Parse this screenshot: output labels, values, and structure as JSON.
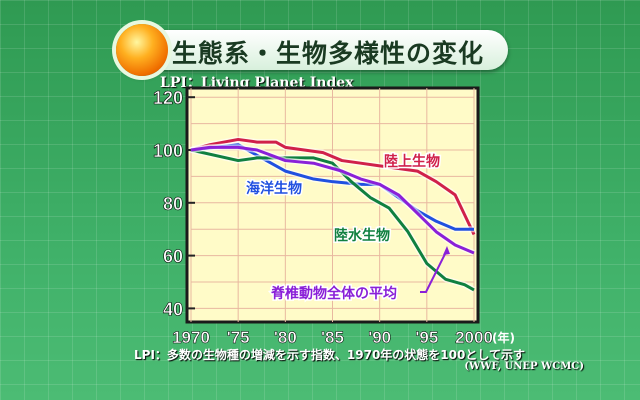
{
  "header": {
    "title": "生態系・生物多様性の変化",
    "subtitle": "LPI：Living Planet Index"
  },
  "footer": {
    "note": "LPI：多数の生物種の増減を示す指数、1970年の状態を100として示す",
    "source": "(WWF, UNEP WCMC)"
  },
  "chart_data": {
    "type": "line",
    "title": "生態系・生物多様性の変化",
    "xlabel": "(年)",
    "ylabel": "LPI",
    "xlim": [
      1970,
      2000
    ],
    "ylim": [
      35,
      120
    ],
    "x_ticks": [
      1970,
      1975,
      1980,
      1985,
      1990,
      1995,
      2000
    ],
    "x_tick_labels": [
      "1970",
      "'75",
      "'80",
      "'85",
      "'90",
      "'95",
      "2000"
    ],
    "y_ticks": [
      40,
      60,
      80,
      100,
      120
    ],
    "y_tick_labels": [
      "40",
      "60",
      "80",
      "100",
      "120"
    ],
    "grid": true,
    "series": [
      {
        "name": "陸上生物",
        "color": "#d0204a",
        "x": [
          1970,
          1972,
          1975,
          1977,
          1979,
          1980,
          1982,
          1984,
          1986,
          1988,
          1990,
          1992,
          1994,
          1996,
          1998,
          2000
        ],
        "values": [
          100,
          102,
          104,
          103,
          103,
          101,
          100,
          99,
          96,
          95,
          94,
          93,
          92,
          88,
          83,
          68
        ]
      },
      {
        "name": "海洋生物",
        "color": "#2050e0",
        "x": [
          1970,
          1975,
          1977,
          1980,
          1983,
          1985,
          1988,
          1990,
          1992,
          1994,
          1996,
          1998,
          2000
        ],
        "values": [
          100,
          102,
          98,
          92,
          89,
          88,
          87,
          87,
          82,
          77,
          73,
          70,
          70
        ]
      },
      {
        "name": "陸水生物",
        "color": "#108040",
        "x": [
          1970,
          1975,
          1977,
          1980,
          1983,
          1985,
          1987,
          1989,
          1991,
          1993,
          1995,
          1997,
          1999,
          2000
        ],
        "values": [
          100,
          96,
          97,
          97,
          97,
          95,
          88,
          82,
          78,
          69,
          57,
          51,
          49,
          47
        ]
      },
      {
        "name": "脊椎動物全体の平均",
        "color": "#8a20d8",
        "x": [
          1970,
          1972,
          1975,
          1977,
          1980,
          1983,
          1986,
          1988,
          1990,
          1992,
          1994,
          1996,
          1998,
          2000
        ],
        "values": [
          100,
          101,
          101,
          100,
          96,
          95,
          92,
          89,
          87,
          83,
          76,
          69,
          64,
          61
        ]
      }
    ]
  }
}
